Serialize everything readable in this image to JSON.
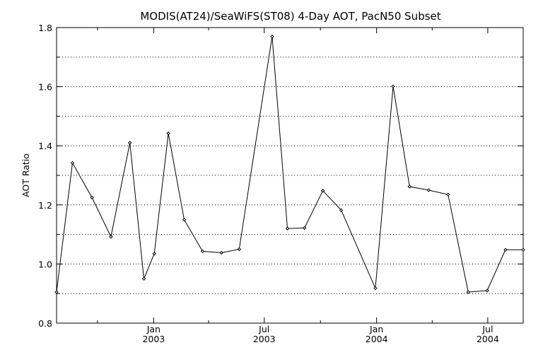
{
  "chart_data": {
    "type": "line",
    "title": "MODIS(AT24)/SeaWiFS(ST08) 4-Day AOT, PacN50 Subset",
    "xlabel": "",
    "ylabel": "AOT Ratio",
    "ylim": [
      0.8,
      1.8
    ],
    "xlim": [
      "2002-07-26",
      "2004-08-28"
    ],
    "y_ticks": [
      "0.8",
      "1.0",
      "1.2",
      "1.4",
      "1.6",
      "1.8"
    ],
    "x_ticks": [
      {
        "date": "2003-01-01",
        "label_top": "Jan",
        "label_bottom": "2003"
      },
      {
        "date": "2003-07-01",
        "label_top": "Jul",
        "label_bottom": "2003"
      },
      {
        "date": "2004-01-01",
        "label_top": "Jan",
        "label_bottom": "2004"
      },
      {
        "date": "2004-07-01",
        "label_top": "Jul",
        "label_bottom": "2004"
      }
    ],
    "grid": "horizontal dotted",
    "series": [
      {
        "color": "#000000",
        "marker": "diamond",
        "x": [
          "2002-07-26",
          "2002-08-21",
          "2002-09-22",
          "2002-10-23",
          "2002-11-23",
          "2002-12-16",
          "2003-01-02",
          "2003-01-25",
          "2003-02-20",
          "2003-03-22",
          "2003-04-22",
          "2003-05-21",
          "2003-07-14",
          "2003-08-08",
          "2003-09-05",
          "2003-10-05",
          "2003-11-04",
          "2003-12-30",
          "2004-01-28",
          "2004-02-24",
          "2004-03-26",
          "2004-04-27",
          "2004-05-30",
          "2004-06-30",
          "2004-07-30",
          "2004-08-28"
        ],
        "y": [
          0.905,
          1.342,
          1.225,
          1.092,
          1.41,
          0.95,
          1.035,
          1.442,
          1.15,
          1.043,
          1.038,
          1.05,
          1.77,
          1.12,
          1.122,
          1.248,
          1.182,
          0.918,
          1.601,
          1.262,
          1.25,
          1.235,
          0.905,
          0.91,
          1.048,
          1.048
        ]
      }
    ]
  }
}
